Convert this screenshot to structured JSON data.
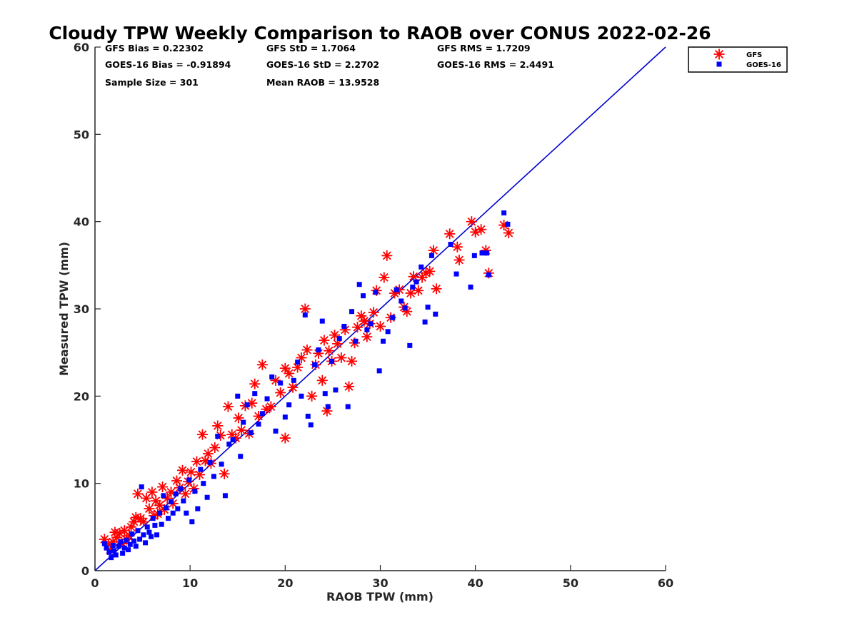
{
  "chart_data": {
    "type": "scatter",
    "title": "Cloudy TPW Weekly Comparison to RAOB over CONUS 2022-02-26",
    "xlabel": "RAOB TPW (mm)",
    "ylabel": "Measured TPW (mm)",
    "xlim": [
      0,
      60
    ],
    "ylim": [
      0,
      60
    ],
    "xticks": [
      "0",
      "10",
      "20",
      "30",
      "40",
      "50",
      "60"
    ],
    "yticks": [
      "0",
      "10",
      "20",
      "30",
      "40",
      "50",
      "60"
    ],
    "grid": false,
    "legend_position": "top-right outside plot",
    "stats": [
      [
        "GFS Bias = 0.22302",
        "GFS StD = 1.7064",
        "GFS RMS = 1.7209"
      ],
      [
        "GOES-16 Bias = -0.91894",
        "GOES-16 StD = 2.2702",
        "GOES-16 RMS = 2.4491"
      ],
      [
        "Sample Size = 301",
        "Mean RAOB = 13.9528"
      ]
    ],
    "reference_line": {
      "x": [
        0,
        60
      ],
      "y": [
        0,
        60
      ],
      "color": "#0000cc"
    },
    "series": [
      {
        "name": "GFS",
        "marker": "asterisk",
        "color": "#ff0000",
        "points": [
          [
            1.0,
            3.6
          ],
          [
            1.4,
            3.0
          ],
          [
            1.6,
            2.4
          ],
          [
            1.9,
            3.3
          ],
          [
            2.1,
            4.4
          ],
          [
            2.3,
            3.8
          ],
          [
            2.6,
            4.3
          ],
          [
            2.9,
            3.1
          ],
          [
            3.1,
            4.6
          ],
          [
            3.3,
            3.6
          ],
          [
            3.6,
            4.0
          ],
          [
            3.8,
            5.0
          ],
          [
            4.1,
            5.6
          ],
          [
            4.3,
            6.1
          ],
          [
            4.5,
            8.8
          ],
          [
            4.8,
            6.0
          ],
          [
            5.1,
            5.6
          ],
          [
            5.4,
            8.3
          ],
          [
            5.7,
            7.1
          ],
          [
            6.0,
            9.0
          ],
          [
            6.2,
            6.3
          ],
          [
            6.4,
            8.0
          ],
          [
            6.6,
            6.5
          ],
          [
            6.8,
            7.5
          ],
          [
            7.1,
            9.6
          ],
          [
            7.3,
            7.0
          ],
          [
            7.6,
            8.3
          ],
          [
            8.0,
            9.0
          ],
          [
            8.2,
            7.7
          ],
          [
            8.6,
            10.3
          ],
          [
            8.9,
            9.5
          ],
          [
            9.2,
            11.5
          ],
          [
            9.5,
            8.8
          ],
          [
            9.8,
            10.2
          ],
          [
            10.1,
            11.3
          ],
          [
            10.4,
            9.4
          ],
          [
            10.7,
            12.5
          ],
          [
            11.0,
            11.0
          ],
          [
            11.3,
            15.6
          ],
          [
            11.6,
            12.6
          ],
          [
            11.9,
            13.4
          ],
          [
            12.2,
            12.3
          ],
          [
            12.6,
            14.1
          ],
          [
            12.9,
            16.6
          ],
          [
            13.2,
            15.5
          ],
          [
            13.6,
            11.1
          ],
          [
            14.0,
            18.8
          ],
          [
            14.4,
            15.6
          ],
          [
            14.8,
            15.2
          ],
          [
            15.1,
            17.5
          ],
          [
            15.4,
            16.1
          ],
          [
            15.8,
            18.9
          ],
          [
            16.2,
            15.7
          ],
          [
            16.5,
            19.2
          ],
          [
            16.8,
            21.4
          ],
          [
            17.2,
            17.7
          ],
          [
            17.6,
            23.6
          ],
          [
            18.0,
            18.5
          ],
          [
            18.5,
            18.8
          ],
          [
            19.0,
            21.8
          ],
          [
            19.5,
            20.4
          ],
          [
            20.0,
            23.2
          ],
          [
            20.0,
            15.2
          ],
          [
            20.4,
            22.6
          ],
          [
            20.8,
            21.0
          ],
          [
            21.3,
            23.3
          ],
          [
            21.7,
            24.4
          ],
          [
            22.1,
            30.0
          ],
          [
            22.3,
            25.3
          ],
          [
            22.8,
            20.0
          ],
          [
            23.2,
            23.6
          ],
          [
            23.5,
            24.9
          ],
          [
            23.9,
            21.8
          ],
          [
            24.1,
            26.4
          ],
          [
            24.4,
            18.3
          ],
          [
            24.6,
            25.2
          ],
          [
            24.9,
            24.0
          ],
          [
            25.2,
            27.0
          ],
          [
            25.5,
            26.0
          ],
          [
            25.9,
            24.4
          ],
          [
            26.3,
            27.6
          ],
          [
            26.7,
            21.1
          ],
          [
            27.0,
            24.0
          ],
          [
            27.3,
            26.1
          ],
          [
            27.6,
            27.9
          ],
          [
            28.0,
            29.2
          ],
          [
            28.3,
            28.6
          ],
          [
            28.6,
            26.8
          ],
          [
            28.9,
            28.3
          ],
          [
            29.3,
            29.6
          ],
          [
            29.6,
            32.1
          ],
          [
            30.0,
            28.0
          ],
          [
            30.4,
            33.6
          ],
          [
            30.7,
            36.1
          ],
          [
            31.1,
            29.0
          ],
          [
            31.5,
            31.8
          ],
          [
            32.0,
            32.2
          ],
          [
            32.5,
            30.2
          ],
          [
            32.8,
            29.7
          ],
          [
            33.2,
            31.8
          ],
          [
            33.5,
            33.7
          ],
          [
            34.0,
            32.1
          ],
          [
            34.4,
            33.6
          ],
          [
            34.8,
            34.1
          ],
          [
            35.2,
            34.3
          ],
          [
            35.6,
            36.7
          ],
          [
            35.9,
            32.3
          ],
          [
            37.3,
            38.6
          ],
          [
            38.1,
            37.1
          ],
          [
            38.3,
            35.6
          ],
          [
            39.6,
            40.0
          ],
          [
            40.0,
            38.8
          ],
          [
            40.6,
            39.1
          ],
          [
            41.1,
            36.7
          ],
          [
            41.4,
            34.1
          ],
          [
            43.0,
            39.6
          ],
          [
            43.5,
            38.7
          ]
        ]
      },
      {
        "name": "GOES-16",
        "marker": "square",
        "color": "#0000ff",
        "points": [
          [
            1.0,
            3.1
          ],
          [
            1.2,
            2.6
          ],
          [
            1.5,
            2.1
          ],
          [
            1.7,
            1.5
          ],
          [
            1.9,
            2.9
          ],
          [
            2.0,
            2.3
          ],
          [
            2.2,
            1.8
          ],
          [
            2.5,
            2.8
          ],
          [
            2.7,
            3.3
          ],
          [
            2.9,
            2.0
          ],
          [
            3.1,
            2.6
          ],
          [
            3.3,
            3.5
          ],
          [
            3.5,
            2.4
          ],
          [
            3.7,
            3.0
          ],
          [
            3.9,
            4.2
          ],
          [
            4.1,
            3.4
          ],
          [
            4.3,
            2.8
          ],
          [
            4.5,
            4.6
          ],
          [
            4.7,
            3.6
          ],
          [
            4.9,
            9.6
          ],
          [
            5.1,
            4.1
          ],
          [
            5.3,
            3.2
          ],
          [
            5.5,
            5.0
          ],
          [
            5.7,
            4.4
          ],
          [
            5.9,
            3.9
          ],
          [
            6.1,
            6.0
          ],
          [
            6.3,
            5.2
          ],
          [
            6.5,
            4.1
          ],
          [
            6.8,
            6.6
          ],
          [
            7.0,
            5.3
          ],
          [
            7.2,
            8.6
          ],
          [
            7.5,
            7.2
          ],
          [
            7.7,
            6.0
          ],
          [
            8.0,
            7.9
          ],
          [
            8.2,
            6.6
          ],
          [
            8.5,
            8.8
          ],
          [
            8.7,
            7.1
          ],
          [
            9.0,
            9.4
          ],
          [
            9.3,
            8.0
          ],
          [
            9.6,
            6.6
          ],
          [
            9.9,
            10.4
          ],
          [
            10.2,
            5.6
          ],
          [
            10.5,
            9.1
          ],
          [
            10.8,
            7.1
          ],
          [
            11.1,
            11.6
          ],
          [
            11.4,
            10.0
          ],
          [
            11.8,
            8.4
          ],
          [
            12.1,
            12.4
          ],
          [
            12.5,
            10.8
          ],
          [
            12.9,
            15.4
          ],
          [
            13.3,
            12.2
          ],
          [
            13.7,
            8.6
          ],
          [
            14.1,
            14.5
          ],
          [
            14.5,
            15.0
          ],
          [
            15.0,
            20.0
          ],
          [
            15.3,
            13.1
          ],
          [
            15.6,
            17.0
          ],
          [
            16.0,
            19.0
          ],
          [
            16.4,
            15.8
          ],
          [
            16.8,
            20.3
          ],
          [
            17.2,
            16.8
          ],
          [
            17.6,
            18.0
          ],
          [
            18.1,
            19.7
          ],
          [
            18.6,
            22.2
          ],
          [
            19.0,
            16.0
          ],
          [
            19.5,
            21.5
          ],
          [
            20.0,
            17.6
          ],
          [
            20.4,
            19.0
          ],
          [
            20.9,
            21.8
          ],
          [
            21.3,
            23.9
          ],
          [
            21.7,
            20.0
          ],
          [
            22.1,
            29.3
          ],
          [
            22.4,
            17.7
          ],
          [
            22.7,
            16.7
          ],
          [
            23.1,
            23.6
          ],
          [
            23.5,
            25.3
          ],
          [
            23.9,
            28.6
          ],
          [
            24.2,
            20.3
          ],
          [
            24.5,
            18.8
          ],
          [
            24.9,
            24.0
          ],
          [
            25.3,
            20.7
          ],
          [
            25.7,
            26.6
          ],
          [
            26.2,
            28.0
          ],
          [
            26.6,
            18.8
          ],
          [
            27.0,
            29.7
          ],
          [
            27.4,
            26.3
          ],
          [
            27.8,
            32.8
          ],
          [
            28.2,
            31.5
          ],
          [
            28.6,
            27.6
          ],
          [
            29.0,
            28.3
          ],
          [
            29.5,
            31.9
          ],
          [
            29.9,
            22.9
          ],
          [
            30.3,
            26.3
          ],
          [
            30.8,
            27.4
          ],
          [
            31.3,
            29.0
          ],
          [
            31.7,
            32.2
          ],
          [
            32.2,
            30.9
          ],
          [
            32.6,
            30.1
          ],
          [
            33.1,
            25.8
          ],
          [
            33.4,
            32.5
          ],
          [
            33.8,
            33.1
          ],
          [
            34.3,
            34.8
          ],
          [
            34.7,
            28.5
          ],
          [
            35.0,
            30.2
          ],
          [
            35.4,
            36.1
          ],
          [
            35.8,
            29.4
          ],
          [
            37.4,
            37.4
          ],
          [
            38.0,
            34.0
          ],
          [
            39.5,
            32.5
          ],
          [
            39.9,
            36.1
          ],
          [
            40.7,
            36.4
          ],
          [
            41.2,
            36.4
          ],
          [
            41.4,
            33.9
          ],
          [
            43.0,
            41.0
          ],
          [
            43.4,
            39.7
          ]
        ]
      }
    ]
  }
}
